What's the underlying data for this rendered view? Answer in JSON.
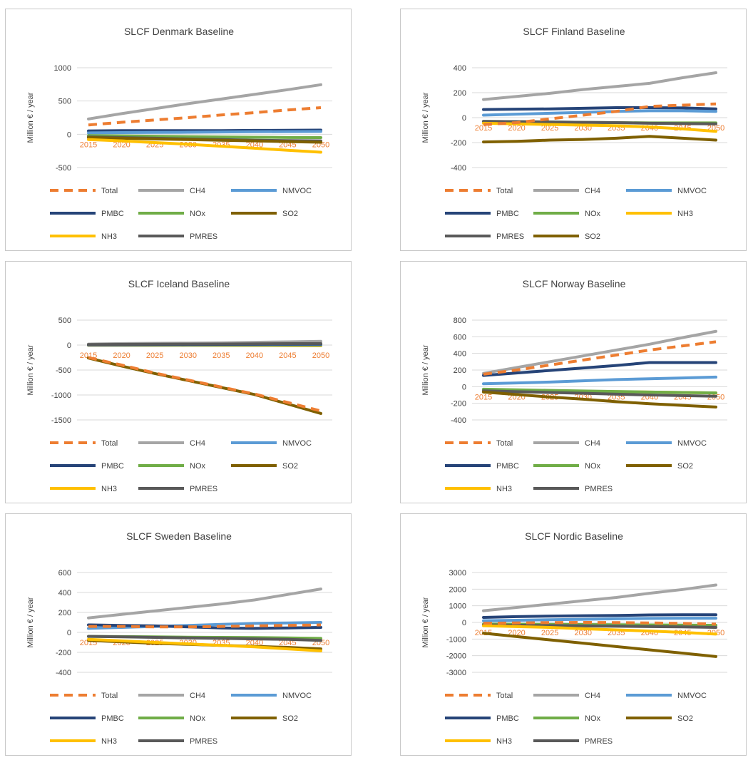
{
  "colors": {
    "Total": "#ED7D31",
    "CH4": "#A5A5A5",
    "NMVOC": "#5B9BD5",
    "PMBC": "#264478",
    "NOx": "#70AD47",
    "SO2": "#7F6000",
    "NH3": "#FFC000",
    "PMRES": "#595959"
  },
  "chart_data": [
    {
      "type": "line",
      "title": "SLCF Denmark Baseline",
      "ylabel": "Million € / year",
      "xlabel": "",
      "x": [
        "2015",
        "2020",
        "2025",
        "2030",
        "2035",
        "2040",
        "2045",
        "2050"
      ],
      "yticks": [
        1000,
        500,
        0,
        -500
      ],
      "ylim": [
        -500,
        1000
      ],
      "grid": true,
      "legend_position": "bottom",
      "legend_order": [
        "Total",
        "CH4",
        "NMVOC",
        "PMBC",
        "NOx",
        "SO2",
        "NH3",
        "PMRES"
      ],
      "legend_labels": {
        "Total": "Total",
        "CH4": "CH4",
        "NMVOC": "NMVOC",
        "PMBC": "PMBC",
        "NOx": "NOx",
        "SO2": "SO2",
        "NH3": "NH3",
        "PMRES": "PMRES"
      },
      "series": [
        {
          "name": "CH4",
          "values": [
            230,
            310,
            385,
            460,
            530,
            600,
            670,
            745
          ]
        },
        {
          "name": "PMBC",
          "values": [
            50,
            55,
            55,
            55,
            55,
            58,
            60,
            62
          ]
        },
        {
          "name": "NMVOC",
          "values": [
            20,
            25,
            28,
            30,
            35,
            38,
            40,
            42
          ]
        },
        {
          "name": "NOx",
          "values": [
            -20,
            -25,
            -30,
            -35,
            -40,
            -45,
            -48,
            -50
          ]
        },
        {
          "name": "PMRES",
          "values": [
            -40,
            -50,
            -60,
            -70,
            -80,
            -90,
            -95,
            -100
          ]
        },
        {
          "name": "SO2",
          "values": [
            -50,
            -60,
            -70,
            -80,
            -90,
            -100,
            -110,
            -120
          ]
        },
        {
          "name": "NH3",
          "values": [
            -80,
            -100,
            -125,
            -150,
            -180,
            -210,
            -240,
            -270
          ]
        },
        {
          "name": "Total",
          "values": [
            140,
            180,
            215,
            250,
            290,
            325,
            365,
            400
          ]
        }
      ]
    },
    {
      "type": "line",
      "title": "SLCF Finland Baseline",
      "ylabel": "Million € / year",
      "xlabel": "",
      "x": [
        "2015",
        "2020",
        "2025",
        "2030",
        "2035",
        "2040",
        "2045",
        "2050"
      ],
      "yticks": [
        400,
        200,
        0,
        -200,
        -400
      ],
      "ylim": [
        -400,
        400
      ],
      "grid": true,
      "legend_position": "bottom",
      "legend_order": [
        "Total",
        "CH4",
        "NMVOC",
        "PMBC",
        "NOx",
        "NH3",
        "PMRES",
        "SO2"
      ],
      "legend_labels": {
        "Total": "Total",
        "CH4": "CH4",
        "NMVOC": "NMVOC",
        "PMBC": "PMBC",
        "NOx": "NOx",
        "SO2": "SO2",
        "NH3": "NH3",
        "PMRES": "PMRES"
      },
      "series": [
        {
          "name": "CH4",
          "values": [
            145,
            170,
            195,
            225,
            250,
            275,
            320,
            360
          ]
        },
        {
          "name": "PMBC",
          "values": [
            65,
            68,
            70,
            75,
            80,
            80,
            78,
            70
          ]
        },
        {
          "name": "NMVOC",
          "values": [
            20,
            28,
            35,
            42,
            50,
            55,
            55,
            50
          ]
        },
        {
          "name": "NOx",
          "values": [
            -30,
            -32,
            -35,
            -38,
            -40,
            -42,
            -42,
            -42
          ]
        },
        {
          "name": "PMRES",
          "values": [
            -30,
            -32,
            -35,
            -38,
            -40,
            -45,
            -48,
            -50
          ]
        },
        {
          "name": "NH3",
          "values": [
            -45,
            -50,
            -55,
            -60,
            -65,
            -75,
            -90,
            -110
          ]
        },
        {
          "name": "SO2",
          "values": [
            -195,
            -190,
            -180,
            -175,
            -165,
            -150,
            -165,
            -180
          ]
        },
        {
          "name": "Total",
          "values": [
            -55,
            -40,
            -10,
            20,
            50,
            90,
            100,
            110
          ]
        }
      ]
    },
    {
      "type": "line",
      "title": "SLCF Iceland Baseline",
      "ylabel": "Million € / year",
      "xlabel": "",
      "x": [
        "2015",
        "2020",
        "2025",
        "2030",
        "2035",
        "2040",
        "2045",
        "2050"
      ],
      "yticks": [
        500,
        0,
        -500,
        -1000,
        -1500
      ],
      "ylim": [
        -1500,
        500
      ],
      "grid": true,
      "legend_position": "bottom",
      "legend_order": [
        "Total",
        "CH4",
        "NMVOC",
        "PMBC",
        "NOx",
        "SO2",
        "NH3",
        "PMRES"
      ],
      "legend_labels": {
        "Total": "Total",
        "CH4": "CH4",
        "NMVOC": "NMVOC",
        "PMBC": "PMBC",
        "NOx": "NOx",
        "SO2": "SO2",
        "NH3": "NH3",
        "PMRES": "PMRES"
      },
      "series": [
        {
          "name": "NH3",
          "values": [
            -5,
            -6,
            -7,
            -8,
            -9,
            -10,
            -12,
            -15
          ]
        },
        {
          "name": "NOx",
          "values": [
            0,
            0,
            0,
            0,
            0,
            0,
            0,
            0
          ]
        },
        {
          "name": "NMVOC",
          "values": [
            0,
            2,
            3,
            4,
            5,
            6,
            7,
            8
          ]
        },
        {
          "name": "PMBC",
          "values": [
            5,
            8,
            10,
            12,
            14,
            16,
            18,
            20
          ]
        },
        {
          "name": "CH4",
          "values": [
            20,
            30,
            35,
            40,
            45,
            55,
            65,
            75
          ]
        },
        {
          "name": "PMRES",
          "values": [
            10,
            15,
            18,
            20,
            22,
            25,
            28,
            30
          ]
        },
        {
          "name": "SO2",
          "values": [
            -260,
            -420,
            -570,
            -710,
            -850,
            -990,
            -1180,
            -1370
          ]
        },
        {
          "name": "Total",
          "values": [
            -250,
            -400,
            -560,
            -700,
            -840,
            -980,
            -1150,
            -1320
          ]
        }
      ]
    },
    {
      "type": "line",
      "title": "SLCF Norway Baseline",
      "ylabel": "Million € / year",
      "xlabel": "",
      "x": [
        "2015",
        "2020",
        "2025",
        "2030",
        "2035",
        "2040",
        "2045",
        "2050"
      ],
      "yticks": [
        800,
        600,
        400,
        200,
        0,
        -200,
        -400
      ],
      "ylim": [
        -400,
        800
      ],
      "grid": true,
      "legend_position": "bottom",
      "legend_order": [
        "Total",
        "CH4",
        "NMVOC",
        "PMBC",
        "NOx",
        "SO2",
        "NH3",
        "PMRES"
      ],
      "legend_labels": {
        "Total": "Total",
        "CH4": "CH4",
        "NMVOC": "NMVOC",
        "PMBC": "PMBC",
        "NOx": "NOx",
        "SO2": "SO2",
        "NH3": "NH3",
        "PMRES": "PMRES"
      },
      "series": [
        {
          "name": "CH4",
          "values": [
            160,
            230,
            300,
            370,
            440,
            510,
            590,
            665
          ]
        },
        {
          "name": "PMBC",
          "values": [
            135,
            165,
            195,
            225,
            255,
            290,
            290,
            290
          ]
        },
        {
          "name": "NMVOC",
          "values": [
            35,
            45,
            55,
            70,
            85,
            95,
            105,
            115
          ]
        },
        {
          "name": "NH3",
          "values": [
            -35,
            -42,
            -48,
            -55,
            -60,
            -65,
            -70,
            -75
          ]
        },
        {
          "name": "NOx",
          "values": [
            -30,
            -38,
            -45,
            -52,
            -58,
            -65,
            -70,
            -75
          ]
        },
        {
          "name": "PMRES",
          "values": [
            -50,
            -60,
            -70,
            -80,
            -90,
            -100,
            -108,
            -115
          ]
        },
        {
          "name": "SO2",
          "values": [
            -65,
            -95,
            -125,
            -150,
            -180,
            -205,
            -225,
            -245
          ]
        },
        {
          "name": "Total",
          "values": [
            150,
            200,
            260,
            320,
            380,
            440,
            490,
            540
          ]
        }
      ]
    },
    {
      "type": "line",
      "title": "SLCF Sweden Baseline",
      "ylabel": "Million € / year",
      "xlabel": "",
      "x": [
        "2015",
        "2020",
        "2025",
        "2030",
        "2035",
        "2040",
        "2045",
        "2050"
      ],
      "yticks": [
        600,
        400,
        200,
        0,
        -200,
        -400
      ],
      "ylim": [
        -400,
        600
      ],
      "grid": true,
      "legend_position": "bottom",
      "legend_order": [
        "Total",
        "CH4",
        "NMVOC",
        "PMBC",
        "NOx",
        "SO2",
        "NH3",
        "PMRES"
      ],
      "legend_labels": {
        "Total": "Total",
        "CH4": "CH4",
        "NMVOC": "NMVOC",
        "PMBC": "PMBC",
        "NOx": "NOx",
        "SO2": "SO2",
        "NH3": "NH3",
        "PMRES": "PMRES"
      },
      "series": [
        {
          "name": "CH4",
          "values": [
            145,
            180,
            215,
            250,
            285,
            325,
            380,
            435
          ]
        },
        {
          "name": "NMVOC",
          "values": [
            40,
            50,
            60,
            70,
            80,
            90,
            95,
            100
          ]
        },
        {
          "name": "PMBC",
          "values": [
            75,
            70,
            65,
            55,
            45,
            40,
            45,
            50
          ]
        },
        {
          "name": "NOx",
          "values": [
            -40,
            -42,
            -45,
            -48,
            -50,
            -52,
            -55,
            -60
          ]
        },
        {
          "name": "PMRES",
          "values": [
            -40,
            -45,
            -50,
            -55,
            -60,
            -65,
            -70,
            -80
          ]
        },
        {
          "name": "SO2",
          "values": [
            -80,
            -95,
            -110,
            -120,
            -130,
            -140,
            -150,
            -165
          ]
        },
        {
          "name": "NH3",
          "values": [
            -70,
            -85,
            -100,
            -115,
            -130,
            -145,
            -165,
            -185
          ]
        },
        {
          "name": "Total",
          "values": [
            60,
            60,
            55,
            55,
            60,
            65,
            70,
            75
          ]
        }
      ]
    },
    {
      "type": "line",
      "title": "SLCF Nordic Baseline",
      "ylabel": "Million € / year",
      "xlabel": "",
      "x": [
        "2015",
        "2020",
        "2025",
        "2030",
        "2035",
        "2040",
        "2045",
        "2050"
      ],
      "yticks": [
        3000,
        2000,
        1000,
        0,
        -1000,
        -2000,
        -3000
      ],
      "ylim": [
        -3000,
        3000
      ],
      "grid": true,
      "legend_position": "bottom",
      "legend_order": [
        "Total",
        "CH4",
        "NMVOC",
        "PMBC",
        "NOx",
        "SO2",
        "NH3",
        "PMRES"
      ],
      "legend_labels": {
        "Total": "Total",
        "CH4": "CH4",
        "NMVOC": "NMVOC",
        "PMBC": "PMBC",
        "NOx": "NOx",
        "SO2": "SO2",
        "NH3": "NH3",
        "PMRES": "PMRES"
      },
      "series": [
        {
          "name": "CH4",
          "values": [
            700,
            900,
            1100,
            1300,
            1500,
            1750,
            1980,
            2250
          ]
        },
        {
          "name": "PMBC",
          "values": [
            300,
            350,
            380,
            400,
            420,
            450,
            460,
            460
          ]
        },
        {
          "name": "NMVOC",
          "values": [
            100,
            130,
            160,
            190,
            220,
            240,
            250,
            250
          ]
        },
        {
          "name": "NOx",
          "values": [
            -100,
            -110,
            -120,
            -130,
            -140,
            -150,
            -160,
            -170
          ]
        },
        {
          "name": "PMRES",
          "values": [
            -150,
            -170,
            -190,
            -210,
            -230,
            -250,
            -270,
            -300
          ]
        },
        {
          "name": "NH3",
          "values": [
            -200,
            -250,
            -300,
            -380,
            -450,
            -520,
            -600,
            -700
          ]
        },
        {
          "name": "SO2",
          "values": [
            -650,
            -850,
            -1050,
            -1250,
            -1450,
            -1650,
            -1850,
            -2050
          ]
        },
        {
          "name": "Total",
          "values": [
            -50,
            -30,
            -10,
            0,
            -10,
            -30,
            -60,
            -100
          ]
        }
      ]
    }
  ]
}
